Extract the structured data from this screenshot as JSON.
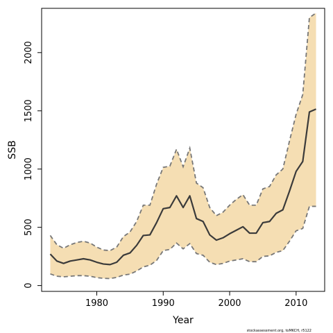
{
  "footer_note": "stockassessment.org, toMKCH, r5122",
  "chart_data": {
    "type": "line",
    "title": "",
    "xlabel": "Year",
    "ylabel": "SSB",
    "xlim": [
      1971.7,
      2014.3
    ],
    "ylim": [
      -50,
      2380
    ],
    "x_ticks": [
      1980,
      1990,
      2000,
      2010
    ],
    "y_ticks": [
      0,
      500,
      1000,
      1500,
      2000
    ],
    "grid": false,
    "colors": {
      "band": "#F5DEB3",
      "estimate": "#3a3a3a",
      "bounds": "#777777"
    },
    "x": [
      1973,
      1974,
      1975,
      1976,
      1977,
      1978,
      1979,
      1980,
      1981,
      1982,
      1983,
      1984,
      1985,
      1986,
      1987,
      1988,
      1989,
      1990,
      1991,
      1992,
      1993,
      1994,
      1995,
      1996,
      1997,
      1998,
      1999,
      2000,
      2001,
      2002,
      2003,
      2004,
      2005,
      2006,
      2007,
      2008,
      2009,
      2010,
      2011,
      2012,
      2013
    ],
    "series": [
      {
        "role": "estimate",
        "values": [
          270,
          210,
          190,
          210,
          220,
          230,
          220,
          200,
          185,
          180,
          200,
          260,
          280,
          345,
          430,
          435,
          540,
          660,
          670,
          770,
          670,
          770,
          575,
          550,
          435,
          390,
          410,
          445,
          475,
          505,
          450,
          450,
          540,
          550,
          620,
          650,
          810,
          980,
          1065,
          1490,
          1515
        ]
      },
      {
        "role": "upper",
        "values": [
          430,
          350,
          320,
          350,
          370,
          380,
          365,
          330,
          305,
          300,
          330,
          420,
          460,
          550,
          690,
          690,
          870,
          1015,
          1025,
          1170,
          1020,
          1180,
          880,
          840,
          670,
          600,
          630,
          690,
          740,
          780,
          690,
          690,
          830,
          850,
          950,
          1000,
          1240,
          1470,
          1640,
          2300,
          2340
        ]
      },
      {
        "role": "lower",
        "values": [
          100,
          80,
          75,
          80,
          85,
          85,
          80,
          68,
          62,
          60,
          70,
          90,
          98,
          125,
          160,
          175,
          215,
          300,
          310,
          365,
          315,
          360,
          275,
          260,
          200,
          180,
          190,
          210,
          220,
          230,
          205,
          205,
          250,
          255,
          285,
          300,
          380,
          470,
          490,
          680,
          680
        ]
      }
    ]
  }
}
